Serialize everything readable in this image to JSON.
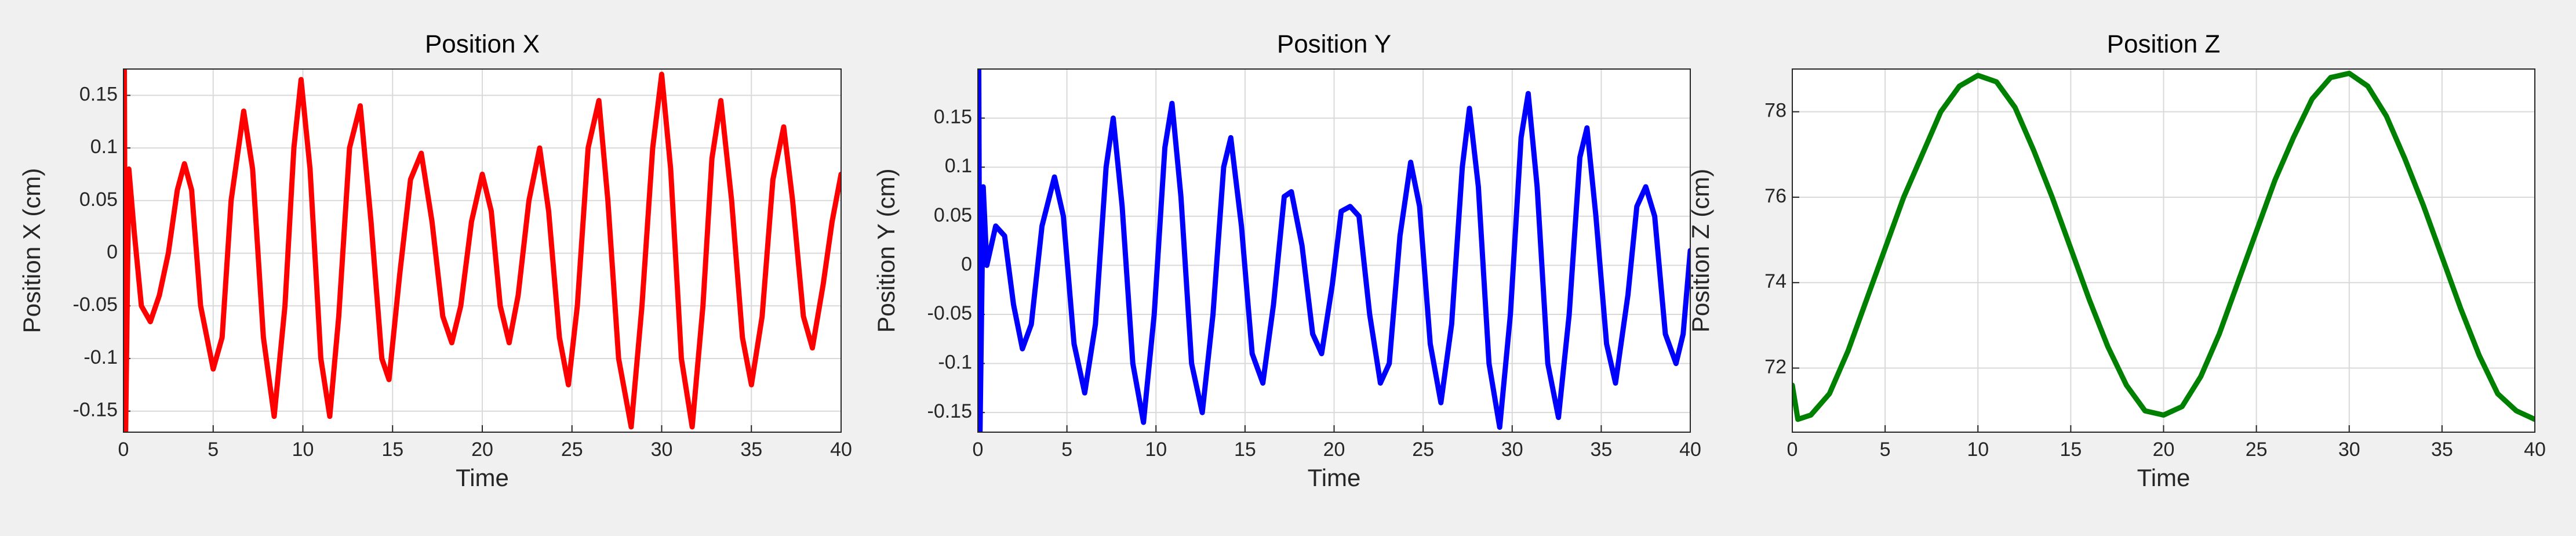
{
  "chart_data": [
    {
      "type": "line",
      "title": "Position X",
      "x_label": "Time",
      "y_label": "Position X (cm)",
      "color": "#ff0000",
      "grid": true,
      "xlim": [
        0,
        40
      ],
      "xticks": [
        0,
        5,
        10,
        15,
        20,
        25,
        30,
        35,
        40
      ],
      "ylim": [
        -0.17,
        0.175
      ],
      "yticks": [
        -0.15,
        -0.1,
        -0.05,
        0,
        0.05,
        0.1,
        0.15
      ],
      "x": [
        0,
        0.05,
        0.12,
        0.3,
        0.6,
        1,
        1.5,
        2,
        2.5,
        3,
        3.4,
        3.8,
        4.3,
        5,
        5.5,
        6,
        6.7,
        7.2,
        7.8,
        8.4,
        9,
        9.5,
        9.9,
        10.4,
        11,
        11.5,
        12,
        12.6,
        13.2,
        13.8,
        14.4,
        14.8,
        15.4,
        16,
        16.6,
        17.2,
        17.8,
        18.3,
        18.8,
        19.4,
        20,
        20.5,
        21,
        21.5,
        22,
        22.6,
        23.2,
        23.7,
        24.3,
        24.8,
        25.3,
        25.9,
        26.5,
        27,
        27.6,
        28.3,
        28.9,
        29.5,
        30,
        30.5,
        31.1,
        31.7,
        32.3,
        32.8,
        33.3,
        33.9,
        34.5,
        35,
        35.6,
        36.2,
        36.8,
        37.3,
        37.9,
        38.4,
        39,
        39.5,
        40
      ],
      "values": [
        -0.17,
        0.175,
        -0.17,
        0.08,
        0.02,
        -0.05,
        -0.065,
        -0.04,
        0,
        0.06,
        0.085,
        0.06,
        -0.05,
        -0.11,
        -0.08,
        0.05,
        0.135,
        0.08,
        -0.08,
        -0.155,
        -0.05,
        0.1,
        0.165,
        0.08,
        -0.1,
        -0.155,
        -0.06,
        0.1,
        0.14,
        0.03,
        -0.1,
        -0.12,
        -0.02,
        0.07,
        0.095,
        0.03,
        -0.06,
        -0.085,
        -0.05,
        0.03,
        0.075,
        0.04,
        -0.05,
        -0.085,
        -0.04,
        0.05,
        0.1,
        0.04,
        -0.08,
        -0.125,
        -0.05,
        0.1,
        0.145,
        0.05,
        -0.1,
        -0.165,
        -0.05,
        0.1,
        0.17,
        0.08,
        -0.1,
        -0.165,
        -0.05,
        0.09,
        0.145,
        0.05,
        -0.08,
        -0.125,
        -0.06,
        0.07,
        0.12,
        0.05,
        -0.06,
        -0.09,
        -0.03,
        0.03,
        0.075
      ]
    },
    {
      "type": "line",
      "title": "Position Y",
      "x_label": "Time",
      "y_label": "Position Y (cm)",
      "color": "#0000ff",
      "grid": true,
      "xlim": [
        0,
        40
      ],
      "xticks": [
        0,
        5,
        10,
        15,
        20,
        25,
        30,
        35,
        40
      ],
      "ylim": [
        -0.17,
        0.2
      ],
      "yticks": [
        -0.15,
        -0.1,
        -0.05,
        0,
        0.05,
        0.1,
        0.15
      ],
      "x": [
        0,
        0.05,
        0.12,
        0.3,
        0.5,
        1,
        1.5,
        2,
        2.5,
        3,
        3.6,
        4.3,
        4.8,
        5.4,
        6,
        6.6,
        7.2,
        7.6,
        8.1,
        8.7,
        9.3,
        9.9,
        10.5,
        10.9,
        11.4,
        12,
        12.6,
        13.2,
        13.8,
        14.2,
        14.8,
        15.4,
        16,
        16.6,
        17.2,
        17.6,
        18.2,
        18.8,
        19.3,
        19.9,
        20.4,
        20.9,
        21.4,
        22,
        22.6,
        23.1,
        23.7,
        24.3,
        24.8,
        25.4,
        26,
        26.6,
        27.2,
        27.6,
        28.1,
        28.7,
        29.3,
        29.9,
        30.5,
        30.9,
        31.4,
        32,
        32.6,
        33.2,
        33.8,
        34.2,
        34.7,
        35.3,
        35.8,
        36.5,
        37,
        37.5,
        38,
        38.6,
        39.2,
        39.6,
        40
      ],
      "values": [
        -0.17,
        0.2,
        -0.17,
        0.08,
        0,
        0.04,
        0.03,
        -0.04,
        -0.085,
        -0.06,
        0.04,
        0.09,
        0.05,
        -0.08,
        -0.13,
        -0.06,
        0.1,
        0.15,
        0.06,
        -0.1,
        -0.16,
        -0.05,
        0.12,
        0.165,
        0.07,
        -0.1,
        -0.15,
        -0.05,
        0.1,
        0.13,
        0.04,
        -0.09,
        -0.12,
        -0.04,
        0.07,
        0.075,
        0.02,
        -0.07,
        -0.09,
        -0.02,
        0.055,
        0.06,
        0.05,
        -0.05,
        -0.12,
        -0.1,
        0.03,
        0.105,
        0.06,
        -0.08,
        -0.14,
        -0.06,
        0.1,
        0.16,
        0.08,
        -0.1,
        -0.165,
        -0.05,
        0.13,
        0.175,
        0.08,
        -0.1,
        -0.155,
        -0.05,
        0.11,
        0.14,
        0.05,
        -0.08,
        -0.12,
        -0.03,
        0.06,
        0.08,
        0.05,
        -0.07,
        -0.1,
        -0.07,
        0.015
      ]
    },
    {
      "type": "line",
      "title": "Position Z",
      "x_label": "Time",
      "y_label": "Position Z (cm)",
      "color": "#008000",
      "grid": true,
      "xlim": [
        0,
        40
      ],
      "xticks": [
        0,
        5,
        10,
        15,
        20,
        25,
        30,
        35,
        40
      ],
      "ylim": [
        70.5,
        79
      ],
      "yticks": [
        72,
        74,
        76,
        78
      ],
      "x": [
        0,
        0.3,
        1,
        2,
        3,
        4,
        5,
        6,
        7,
        8,
        9,
        10,
        11,
        12,
        13,
        14,
        15,
        16,
        17,
        18,
        19,
        20,
        21,
        22,
        23,
        24,
        25,
        26,
        27,
        28,
        29,
        30,
        31,
        32,
        33,
        34,
        35,
        36,
        37,
        38,
        39,
        40
      ],
      "values": [
        71.6,
        70.8,
        70.9,
        71.4,
        72.4,
        73.6,
        74.8,
        76,
        77,
        78,
        78.6,
        78.85,
        78.7,
        78.1,
        77.1,
        76,
        74.8,
        73.6,
        72.5,
        71.6,
        71,
        70.9,
        71.1,
        71.8,
        72.8,
        74,
        75.2,
        76.4,
        77.4,
        78.3,
        78.8,
        78.9,
        78.6,
        77.9,
        76.9,
        75.8,
        74.6,
        73.4,
        72.3,
        71.4,
        71,
        70.8
      ]
    }
  ]
}
